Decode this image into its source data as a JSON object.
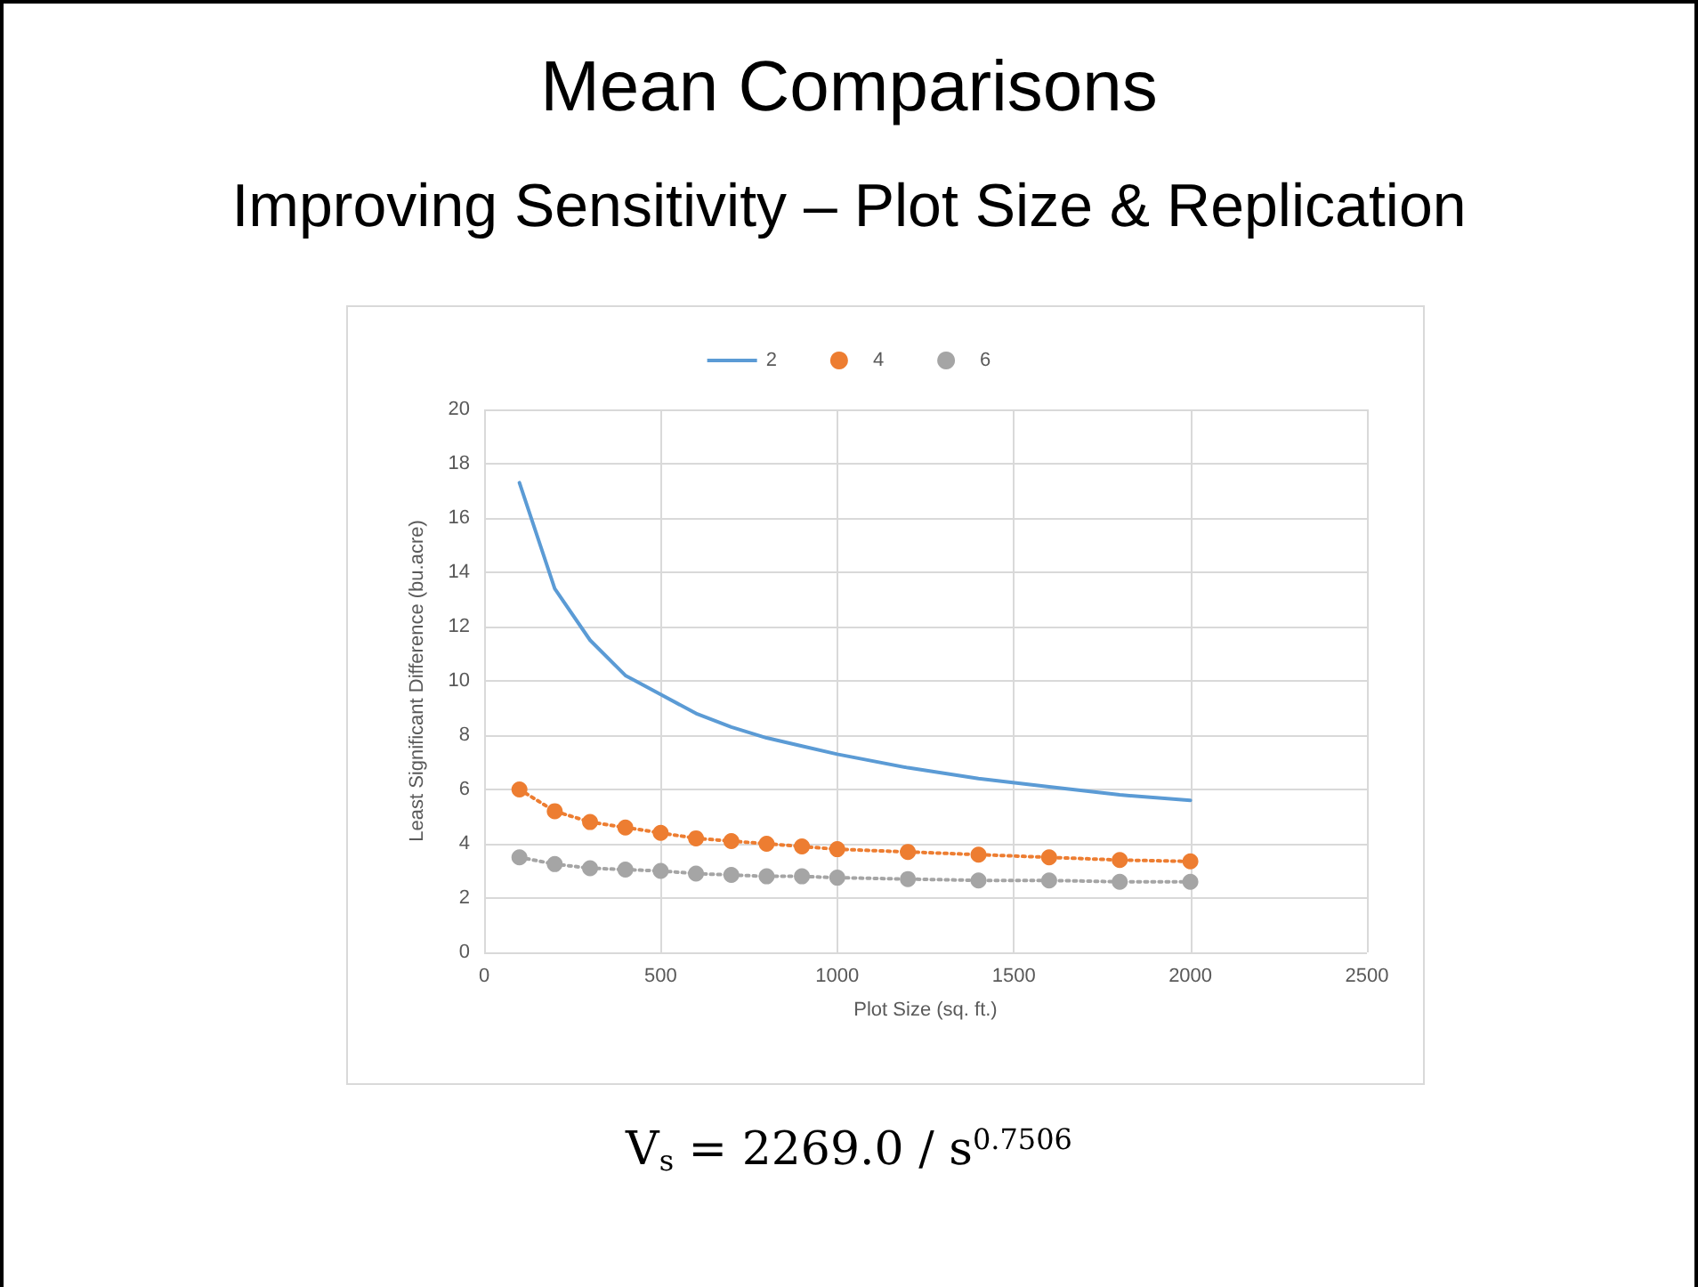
{
  "chart_data": {
    "type": "line",
    "title": "Mean Comparisons",
    "subtitle": "Improving Sensitivity – Plot Size & Replication",
    "xlabel": "Plot Size (sq. ft.)",
    "ylabel": "Least Significant Difference (bu.acre)",
    "x": [
      100,
      200,
      300,
      400,
      500,
      600,
      700,
      800,
      900,
      1000,
      1200,
      1400,
      1600,
      1800,
      2000
    ],
    "series": [
      {
        "name": "2",
        "color": "#5b9bd5",
        "marker": "none",
        "line_style": "solid",
        "values": [
          17.3,
          13.4,
          11.5,
          10.2,
          9.5,
          8.8,
          8.3,
          7.9,
          7.6,
          7.3,
          6.8,
          6.4,
          6.1,
          5.8,
          5.6
        ]
      },
      {
        "name": "4",
        "color": "#ed7d31",
        "marker": "circle",
        "line_style": "dotted",
        "values": [
          6.0,
          5.2,
          4.8,
          4.6,
          4.4,
          4.2,
          4.1,
          4.0,
          3.9,
          3.8,
          3.7,
          3.6,
          3.5,
          3.4,
          3.35
        ]
      },
      {
        "name": "6",
        "color": "#a5a5a5",
        "marker": "circle",
        "line_style": "dotted",
        "values": [
          3.5,
          3.25,
          3.1,
          3.05,
          3.0,
          2.9,
          2.85,
          2.8,
          2.8,
          2.75,
          2.7,
          2.65,
          2.65,
          2.6,
          2.6
        ]
      }
    ],
    "xlim": [
      0,
      2500
    ],
    "xticks": [
      0,
      500,
      1000,
      1500,
      2000,
      2500
    ],
    "ylim": [
      0,
      20
    ],
    "yticks": [
      0,
      2,
      4,
      6,
      8,
      10,
      12,
      14,
      16,
      18,
      20
    ],
    "grid": true,
    "legend": "top",
    "annotations": [
      "V$_{s}$ = 2269.0 / s$^{0.7506}$"
    ]
  }
}
